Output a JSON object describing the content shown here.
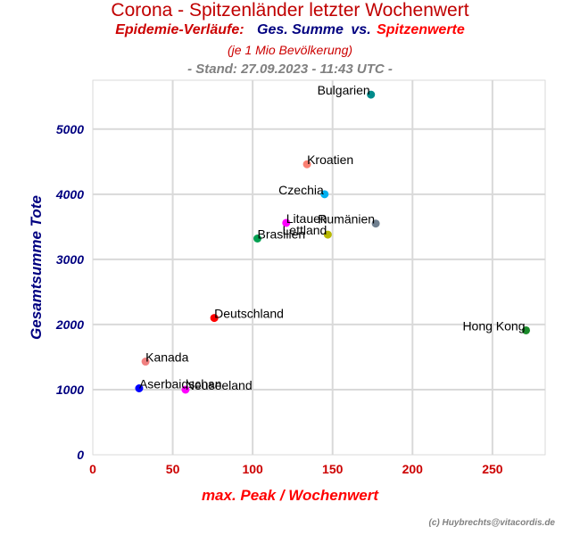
{
  "header": {
    "title": "Corona - Spitzenländer letzter Wochenwert",
    "subtitle_prefix": "Epidemie-Verläufe:",
    "subtitle_mid": "Ges. Summe",
    "subtitle_vs": "vs.",
    "subtitle_end": "Spitzenwerte",
    "note": "(je 1 Mio Bevölkerung)",
    "stand": "- Stand: 27.09.2023 - 11:43 UTC -"
  },
  "credit": "(c) Huybrechts@vitacordis.de",
  "chart_data": {
    "type": "scatter",
    "xlabel": "max. Peak / Wochenwert",
    "ylabel": "Gesamtsumme Tote",
    "xlim": [
      0,
      283
    ],
    "ylim": [
      0,
      5750
    ],
    "xticks": [
      0,
      50,
      100,
      150,
      200,
      250
    ],
    "yticks": [
      0,
      1000,
      2000,
      3000,
      4000,
      5000
    ],
    "grid": true,
    "points": [
      {
        "label": "Bulgarien",
        "x": 174,
        "y": 5530,
        "color": "#008b8b",
        "align": "end"
      },
      {
        "label": "Kroatien",
        "x": 134,
        "y": 4460,
        "color": "#fa8072",
        "align": "start"
      },
      {
        "label": "Czechia",
        "x": 145,
        "y": 4000,
        "color": "#00b0f0",
        "align": "end"
      },
      {
        "label": "Litauen",
        "x": 121,
        "y": 3560,
        "color": "#ff00ff",
        "align": "start"
      },
      {
        "label": "Rumänien",
        "x": 177,
        "y": 3550,
        "color": "#708090",
        "align": "end"
      },
      {
        "label": "Lettland",
        "x": 147,
        "y": 3380,
        "color": "#b8b800",
        "align": "end"
      },
      {
        "label": "Brasilien",
        "x": 103,
        "y": 3320,
        "color": "#00a050",
        "align": "start"
      },
      {
        "label": "Deutschland",
        "x": 76,
        "y": 2100,
        "color": "#ff0000",
        "align": "start"
      },
      {
        "label": "Hong Kong",
        "x": 271,
        "y": 1910,
        "color": "#1a8a2a",
        "align": "end"
      },
      {
        "label": "Kanada",
        "x": 33,
        "y": 1430,
        "color": "#f08080",
        "align": "start"
      },
      {
        "label": "Aserbaidschan",
        "x": 29,
        "y": 1020,
        "color": "#0000ff",
        "align": "start"
      },
      {
        "label": "Neuseeland",
        "x": 58,
        "y": 1000,
        "color": "#ff00ff",
        "align": "start"
      }
    ]
  }
}
